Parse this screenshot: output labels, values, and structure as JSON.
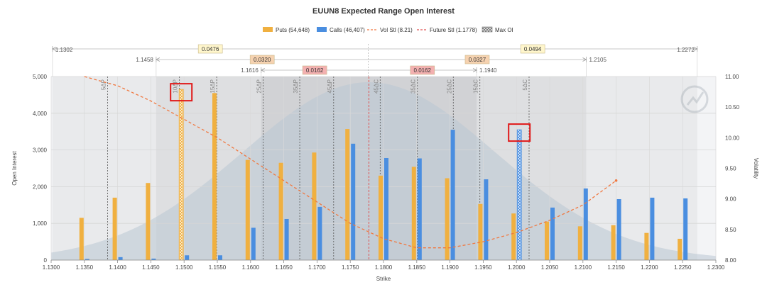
{
  "chart_data": {
    "type": "bar",
    "title": "EUUN8 Expected Range Open Interest",
    "xlabel": "Strike",
    "ylabel": "Open Interest",
    "y2label": "Volatility",
    "ylim": [
      0,
      5000
    ],
    "y2lim": [
      8.0,
      11.0
    ],
    "yticks": [
      "0",
      "1,000",
      "2,000",
      "3,000",
      "4,000",
      "5,000"
    ],
    "y2ticks": [
      "8.00",
      "8.50",
      "9.00",
      "9.50",
      "10.00",
      "10.50",
      "11.00"
    ],
    "categories": [
      "1.1300",
      "1.1350",
      "1.1400",
      "1.1450",
      "1.1500",
      "1.1550",
      "1.1600",
      "1.1650",
      "1.1700",
      "1.1750",
      "1.1800",
      "1.1850",
      "1.1900",
      "1.1950",
      "1.2000",
      "1.2050",
      "1.2100",
      "1.2150",
      "1.2200",
      "1.2250",
      "1.2300"
    ],
    "series": [
      {
        "name": "Puts (54,648)",
        "color": "#f0b040",
        "values": [
          null,
          1150,
          1700,
          2100,
          4650,
          4550,
          2730,
          2650,
          2930,
          3570,
          2300,
          2540,
          2230,
          1530,
          1270,
          1050,
          920,
          950,
          740,
          580,
          null
        ]
      },
      {
        "name": "Calls (46,407)",
        "color": "#4a8ee0",
        "values": [
          null,
          30,
          80,
          40,
          130,
          130,
          880,
          1120,
          1450,
          3170,
          2780,
          2770,
          3550,
          2200,
          3550,
          1430,
          1950,
          1660,
          1700,
          1680,
          null
        ]
      }
    ],
    "max_oi": [
      {
        "series": "Puts",
        "strike": "1.1500"
      },
      {
        "series": "Calls",
        "strike": "1.2000"
      }
    ],
    "vol_smile": {
      "name": "Vol Stl (8.21)",
      "color": "#f07840",
      "points": [
        [
          1.135,
          11.0
        ],
        [
          1.14,
          10.85
        ],
        [
          1.145,
          10.6
        ],
        [
          1.15,
          10.3
        ],
        [
          1.155,
          10.0
        ],
        [
          1.16,
          9.65
        ],
        [
          1.165,
          9.3
        ],
        [
          1.17,
          8.95
        ],
        [
          1.175,
          8.6
        ],
        [
          1.18,
          8.35
        ],
        [
          1.185,
          8.2
        ],
        [
          1.19,
          8.2
        ],
        [
          1.195,
          8.3
        ],
        [
          1.2,
          8.45
        ],
        [
          1.205,
          8.65
        ],
        [
          1.21,
          8.9
        ],
        [
          1.215,
          9.3
        ]
      ]
    },
    "future_settle": {
      "name": "Future Stl (1.1778)",
      "value": 1.1778,
      "color": "#e05050"
    },
    "legend": [
      "Puts (54,648)",
      "Calls (46,407)",
      "Vol Stl (8.21)",
      "Future Stl (1.1778)",
      "Max OI"
    ],
    "legend_position": "top-center",
    "grid": true,
    "delta_lines": [
      {
        "label": "5ΔP",
        "x": 1.1385
      },
      {
        "label": "10ΔP",
        "x": 1.1493
      },
      {
        "label": "15ΔP",
        "x": 1.1549
      },
      {
        "label": "25ΔP",
        "x": 1.1619
      },
      {
        "label": "35ΔP",
        "x": 1.1674
      },
      {
        "label": "45ΔP",
        "x": 1.1725
      },
      {
        "label": "45ΔC",
        "x": 1.1795
      },
      {
        "label": "35ΔC",
        "x": 1.1851
      },
      {
        "label": "25ΔC",
        "x": 1.1905
      },
      {
        "label": "15ΔC",
        "x": 1.1945
      },
      {
        "label": "5ΔC",
        "x": 1.2019
      }
    ],
    "ranges": [
      {
        "left_label": "1.1302",
        "right_label": "1.2272",
        "left_x": 1.1302,
        "right_x": 1.2272,
        "left_width": "0.0476",
        "right_width": "0.0494",
        "color": "#fff6cc"
      },
      {
        "left_label": "1.1458",
        "right_label": "1.2105",
        "left_x": 1.1458,
        "right_x": 1.2105,
        "left_width": "0.0320",
        "right_width": "0.0327",
        "color": "#f6d2b0"
      },
      {
        "left_label": "1.1616",
        "right_label": "1.1940",
        "left_x": 1.1616,
        "right_x": 1.194,
        "left_width": "0.0162",
        "right_width": "0.0162",
        "color": "#f3b0b0"
      }
    ]
  }
}
